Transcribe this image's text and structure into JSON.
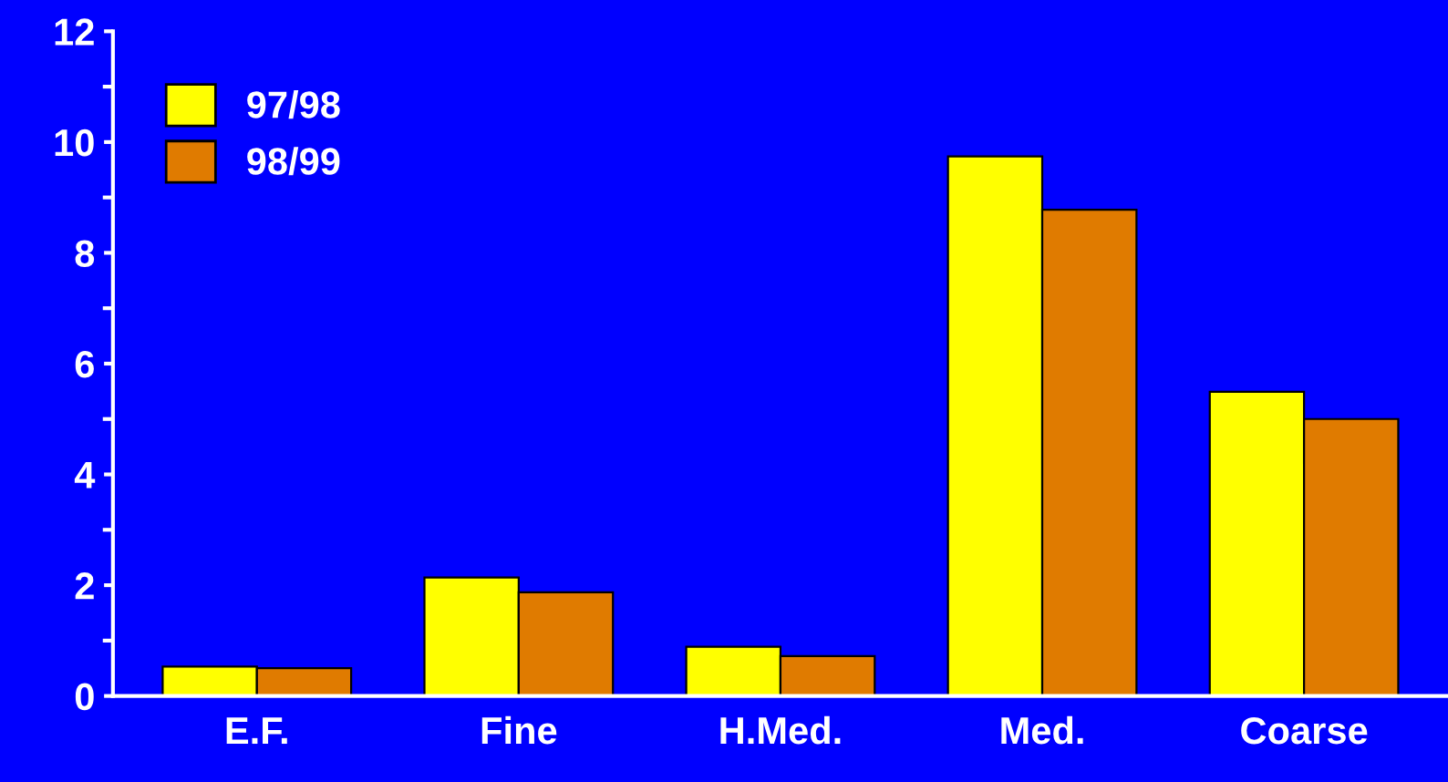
{
  "chart_data": {
    "type": "bar",
    "categories": [
      "E.F.",
      "Fine",
      "H.Med.",
      "Med.",
      "Coarse"
    ],
    "series": [
      {
        "name": "97/98",
        "color": "#ffff00",
        "values": [
          0.53,
          2.14,
          0.89,
          9.74,
          5.49
        ]
      },
      {
        "name": "98/99",
        "color": "#e07b00",
        "values": [
          0.5,
          1.87,
          0.72,
          8.78,
          5.0
        ]
      }
    ],
    "ylim": [
      0,
      12
    ],
    "yticks": [
      0,
      2,
      4,
      6,
      8,
      10,
      12
    ],
    "grid": false,
    "legend": "top left"
  }
}
